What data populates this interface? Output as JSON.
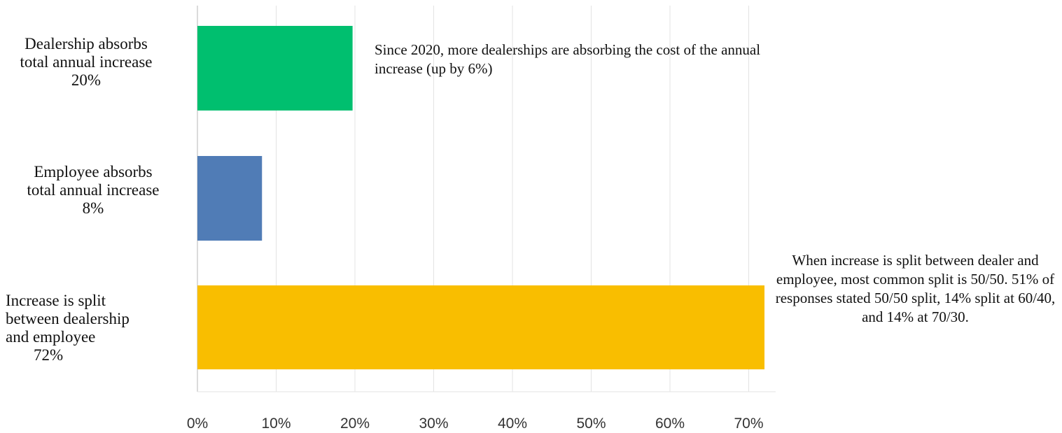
{
  "chart_data": {
    "type": "bar",
    "orientation": "horizontal",
    "categories": [
      {
        "lines": [
          "Dealership absorbs",
          "total annual increase",
          "20%"
        ],
        "align": "center"
      },
      {
        "lines": [
          "Employee absorbs",
          "total annual increase",
          "8%"
        ],
        "align": "center"
      },
      {
        "lines": [
          "Increase is split",
          "between dealership",
          "and employee",
          "72%"
        ],
        "align": "left"
      }
    ],
    "values": [
      19.7,
      8.2,
      72
    ],
    "colors": [
      "#00BF6F",
      "#507CB6",
      "#F9BE00"
    ],
    "xlim": [
      0,
      72
    ],
    "xticks": [
      "0%",
      "10%",
      "20%",
      "30%",
      "40%",
      "50%",
      "60%",
      "70%"
    ],
    "xtick_values": [
      0,
      10,
      20,
      30,
      40,
      50,
      60,
      70
    ],
    "grid": true,
    "annotations": [
      "Since 2020, more dealerships are absorbing the cost of the annual increase (up by 6%)",
      "When increase is split between dealer and employee, most common split is 50/50. 51% of responses stated 50/50 split, 14% split at 60/40, and 14% at 70/30."
    ]
  }
}
